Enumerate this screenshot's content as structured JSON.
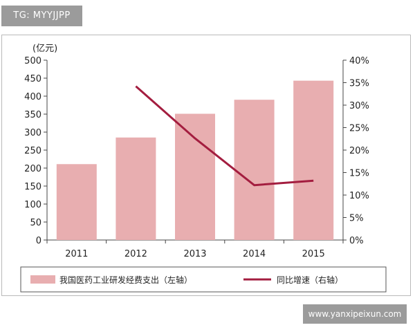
{
  "watermarks": {
    "tag": "TG: MYYJJPP",
    "site": "www.yanxipeixun.com"
  },
  "chart_data": {
    "type": "bar",
    "categories": [
      "2011",
      "2012",
      "2013",
      "2014",
      "2015"
    ],
    "left_axis": {
      "unit_label": "(亿元)",
      "range": [
        0,
        500
      ],
      "ticks": [
        "0",
        "50",
        "100",
        "150",
        "200",
        "250",
        "300",
        "350",
        "400",
        "450",
        "500"
      ]
    },
    "right_axis": {
      "range": [
        0,
        40
      ],
      "ticks": [
        "0%",
        "5%",
        "10%",
        "15%",
        "20%",
        "25%",
        "30%",
        "35%",
        "40%"
      ]
    },
    "series": [
      {
        "name": "我国医药工业研发经费支出（左轴）",
        "kind": "bar",
        "axis": "left",
        "color": "#e8aeb0",
        "values": [
          211,
          285,
          351,
          390,
          443
        ]
      },
      {
        "name": "同比增速（右轴）",
        "kind": "line",
        "axis": "right",
        "color": "#a31d3f",
        "values": [
          null,
          34.2,
          22.6,
          12.2,
          13.2
        ]
      }
    ],
    "grid": false,
    "legend_position": "bottom"
  }
}
